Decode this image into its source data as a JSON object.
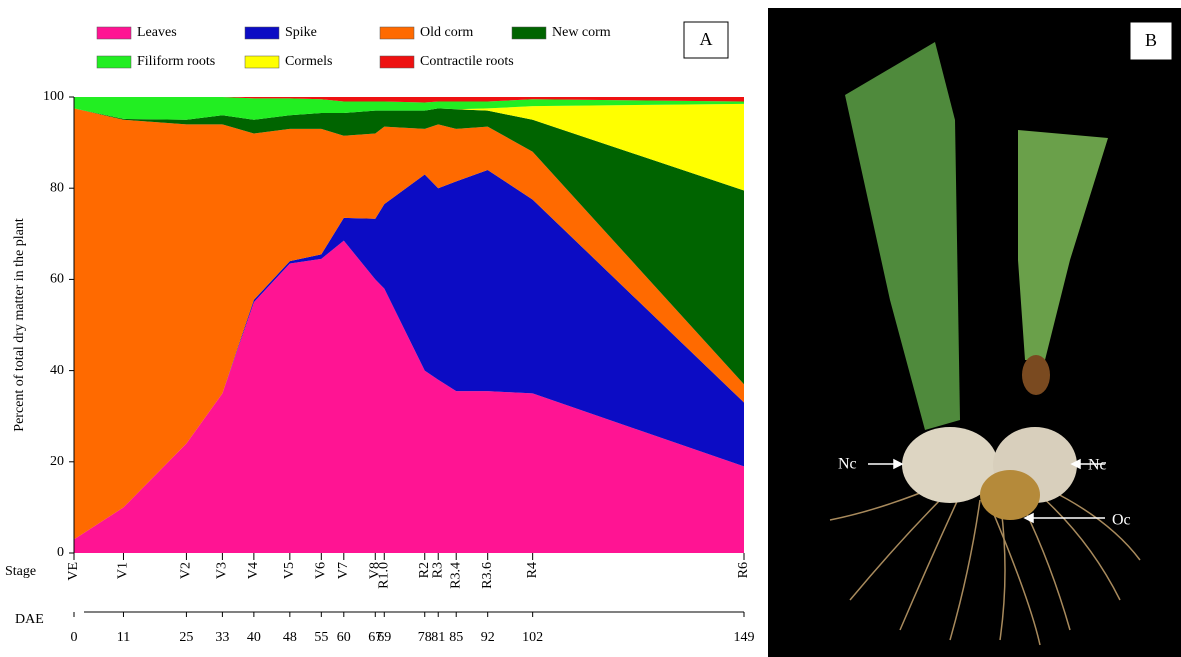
{
  "chart_data": {
    "type": "stacked-area",
    "panel_label": "A",
    "y_label": "Percent of total dry matter in the plant",
    "stage_label": "Stage",
    "x_label": "DAE",
    "x": [
      0,
      11,
      25,
      33,
      40,
      48,
      55,
      60,
      67,
      69,
      78,
      81,
      85,
      92,
      102,
      149
    ],
    "stages": [
      "VE",
      "V1",
      "V2",
      "V3",
      "V4",
      "V5",
      "V6",
      "V7",
      "V8",
      "R1.0",
      "R2",
      "R3",
      "R3.4",
      "R3.6",
      "R4",
      "R6"
    ],
    "xlim": [
      0,
      149
    ],
    "ylim": [
      0,
      100
    ],
    "yticks": [
      0,
      20,
      40,
      60,
      80,
      100
    ],
    "series": [
      {
        "name": "Leaves",
        "color": "#ff1493",
        "values": [
          3,
          10,
          24,
          35,
          55,
          63.5,
          64.5,
          68.5,
          60,
          58,
          40,
          38,
          35.5,
          35.5,
          35,
          19
        ]
      },
      {
        "name": "Spike",
        "color": "#0c0cc4",
        "values": [
          0,
          0,
          0,
          0,
          0.5,
          0.5,
          1,
          5,
          13.3,
          18.5,
          43,
          42,
          46,
          48.5,
          42.5,
          14
        ]
      },
      {
        "name": "Old corm",
        "color": "#ff6a00",
        "values": [
          94.5,
          85,
          70,
          59,
          36.5,
          29,
          27.5,
          18,
          18.7,
          17,
          10,
          14,
          11.5,
          9.5,
          10.5,
          4
        ]
      },
      {
        "name": "New corm",
        "color": "#006400",
        "values": [
          0,
          0.2,
          1,
          2,
          3,
          3,
          3.5,
          5,
          5,
          3.5,
          4,
          3.5,
          4.3,
          3.5,
          7,
          42.5
        ]
      },
      {
        "name": "Cormels",
        "color": "#ffff00",
        "values": [
          0,
          0,
          0,
          0,
          0,
          0,
          0,
          0,
          0,
          0,
          0,
          0,
          0,
          0.5,
          3,
          19
        ]
      },
      {
        "name": "Filiform roots",
        "color": "#22ee22",
        "values": [
          2.5,
          4.8,
          5,
          4,
          4.7,
          3.7,
          3,
          2.5,
          2,
          2,
          1.8,
          1.5,
          1.7,
          1.5,
          1.5,
          0.5
        ]
      },
      {
        "name": "Contractile roots",
        "color": "#ee1111",
        "values": [
          0,
          0,
          0,
          0,
          0.3,
          0.3,
          0.5,
          1,
          1,
          1,
          1.2,
          1,
          1,
          1,
          0.5,
          1
        ]
      }
    ]
  },
  "photo": {
    "panel_label": "B",
    "annotations": [
      "Nc",
      "Nc",
      "Oc"
    ]
  }
}
